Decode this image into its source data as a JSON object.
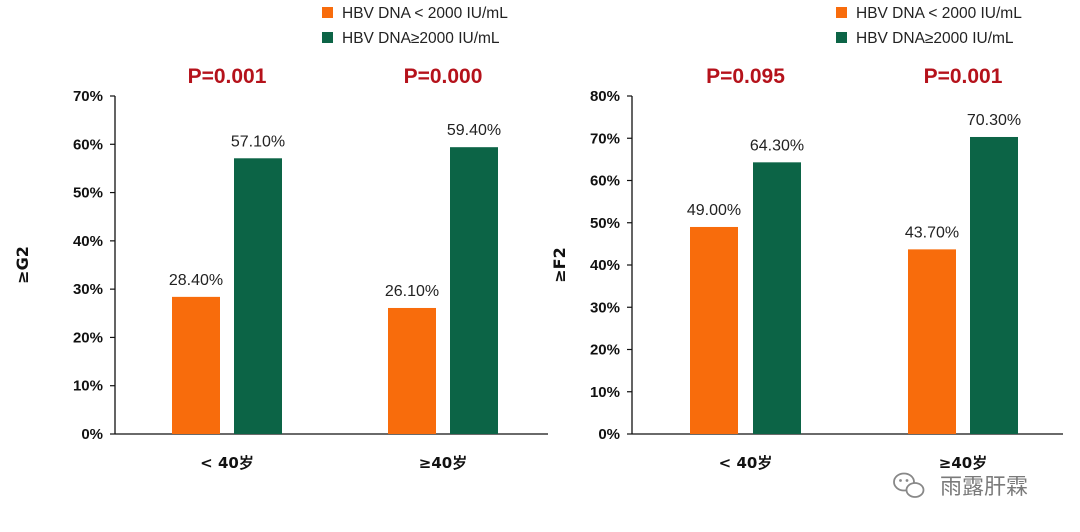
{
  "colors": {
    "orange": "#F86C0C",
    "green": "#0C6446",
    "pvalue": "#B5121B",
    "axis": "#111111"
  },
  "legend": [
    {
      "label": "HBV DNA < 2000 IU/mL",
      "color": "#F86C0C"
    },
    {
      "label": "HBV DNA≥2000 IU/mL",
      "color": "#0C6446"
    }
  ],
  "watermark": {
    "text": "雨露肝霖",
    "icon": "wechat-icon"
  },
  "chart_data": [
    {
      "type": "bar",
      "ylabel": "≥G2",
      "xlabel": "",
      "ylim": [
        0,
        70
      ],
      "ytick_step": 10,
      "tick_suffix": "%",
      "categories": [
        "< 40岁",
        "≥40岁"
      ],
      "p_values": [
        "P=0.001",
        "P=0.000"
      ],
      "series": [
        {
          "name": "HBV DNA < 2000 IU/mL",
          "color": "#F86C0C",
          "values": [
            28.4,
            26.1
          ],
          "labels": [
            "28.40%",
            "26.10%"
          ]
        },
        {
          "name": "HBV DNA≥2000 IU/mL",
          "color": "#0C6446",
          "values": [
            57.1,
            59.4
          ],
          "labels": [
            "57.10%",
            "59.40%"
          ]
        }
      ],
      "grid": false,
      "legend_position": "top"
    },
    {
      "type": "bar",
      "ylabel": "≥F2",
      "xlabel": "",
      "ylim": [
        0,
        80
      ],
      "ytick_step": 10,
      "tick_suffix": "%",
      "categories": [
        "< 40岁",
        "≥40岁"
      ],
      "p_values": [
        "P=0.095",
        "P=0.001"
      ],
      "series": [
        {
          "name": "HBV DNA < 2000 IU/mL",
          "color": "#F86C0C",
          "values": [
            49.0,
            43.7
          ],
          "labels": [
            "49.00%",
            "43.70%"
          ]
        },
        {
          "name": "HBV DNA≥2000 IU/mL",
          "color": "#0C6446",
          "values": [
            64.3,
            70.3
          ],
          "labels": [
            "64.30%",
            "70.30%"
          ]
        }
      ],
      "grid": false,
      "legend_position": "top"
    }
  ]
}
